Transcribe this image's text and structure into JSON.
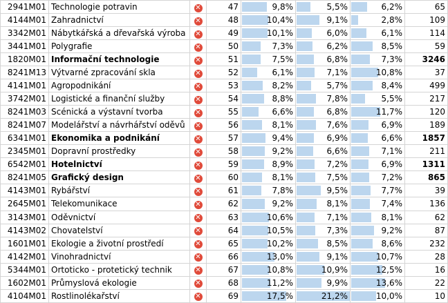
{
  "table": {
    "rows": [
      {
        "code": "2941M01",
        "name": "Technologie potravin",
        "bold": false,
        "rank": "47",
        "p1": "9,8%",
        "p2": "5,5%",
        "p3": "6,2%",
        "count": "65"
      },
      {
        "code": "4144M01",
        "name": "Zahradnictví",
        "bold": false,
        "rank": "48",
        "p1": "10,4%",
        "p2": "9,1%",
        "p3": "2,8%",
        "count": "109"
      },
      {
        "code": "3342M01",
        "name": "Nábytkářská a dřevařská výroba",
        "bold": false,
        "rank": "49",
        "p1": "10,1%",
        "p2": "6,0%",
        "p3": "6,1%",
        "count": "114"
      },
      {
        "code": "3441M01",
        "name": "Polygrafie",
        "bold": false,
        "rank": "50",
        "p1": "7,3%",
        "p2": "6,2%",
        "p3": "8,5%",
        "count": "59"
      },
      {
        "code": "1820M01",
        "name": "Informační technologie",
        "bold": true,
        "rank": "51",
        "p1": "7,5%",
        "p2": "6,8%",
        "p3": "7,3%",
        "count": "3246"
      },
      {
        "code": "8241M13",
        "name": "Výtvarné zpracování skla",
        "bold": false,
        "rank": "52",
        "p1": "6,1%",
        "p2": "7,1%",
        "p3": "10,8%",
        "count": "37"
      },
      {
        "code": "4141M01",
        "name": "Agropodnikání",
        "bold": false,
        "rank": "53",
        "p1": "8,2%",
        "p2": "5,7%",
        "p3": "8,4%",
        "count": "499"
      },
      {
        "code": "3742M01",
        "name": "Logistické a finanční služby",
        "bold": false,
        "rank": "54",
        "p1": "8,8%",
        "p2": "7,8%",
        "p3": "5,5%",
        "count": "217"
      },
      {
        "code": "8241M03",
        "name": "Scénická a výstavní tvorba",
        "bold": false,
        "rank": "55",
        "p1": "6,6%",
        "p2": "6,8%",
        "p3": "11,7%",
        "count": "120"
      },
      {
        "code": "8241M07",
        "name": "Modelářství a návrhářství oděvů",
        "bold": false,
        "rank": "56",
        "p1": "8,1%",
        "p2": "7,6%",
        "p3": "6,9%",
        "count": "189"
      },
      {
        "code": "6341M01",
        "name": "Ekonomika a podnikání",
        "bold": true,
        "rank": "57",
        "p1": "9,4%",
        "p2": "6,9%",
        "p3": "6,6%",
        "count": "1857"
      },
      {
        "code": "2345M01",
        "name": "Dopravní prostředky",
        "bold": false,
        "rank": "58",
        "p1": "9,2%",
        "p2": "6,6%",
        "p3": "7,1%",
        "count": "211"
      },
      {
        "code": "6542M01",
        "name": "Hotelnictví",
        "bold": true,
        "rank": "59",
        "p1": "8,9%",
        "p2": "7,2%",
        "p3": "6,9%",
        "count": "1311"
      },
      {
        "code": "8241M05",
        "name": "Grafický design",
        "bold": true,
        "rank": "60",
        "p1": "8,1%",
        "p2": "7,5%",
        "p3": "7,2%",
        "count": "865"
      },
      {
        "code": "4143M01",
        "name": "Rybářství",
        "bold": false,
        "rank": "61",
        "p1": "7,8%",
        "p2": "9,5%",
        "p3": "7,7%",
        "count": "39"
      },
      {
        "code": "2645M01",
        "name": "Telekomunikace",
        "bold": false,
        "rank": "62",
        "p1": "9,2%",
        "p2": "8,1%",
        "p3": "7,4%",
        "count": "136"
      },
      {
        "code": "3143M01",
        "name": "Oděvnictví",
        "bold": false,
        "rank": "63",
        "p1": "10,6%",
        "p2": "7,1%",
        "p3": "8,1%",
        "count": "62"
      },
      {
        "code": "4143M02",
        "name": "Chovatelství",
        "bold": false,
        "rank": "64",
        "p1": "10,5%",
        "p2": "7,3%",
        "p3": "9,2%",
        "count": "87"
      },
      {
        "code": "1601M01",
        "name": "Ekologie a životní prostředí",
        "bold": false,
        "rank": "65",
        "p1": "10,2%",
        "p2": "8,5%",
        "p3": "8,6%",
        "count": "232"
      },
      {
        "code": "4142M01",
        "name": "Vinohradnictví",
        "bold": false,
        "rank": "66",
        "p1": "13,0%",
        "p2": "9,1%",
        "p3": "10,7%",
        "count": "28"
      },
      {
        "code": "5344M01",
        "name": "Ortoticko - protetický technik",
        "bold": false,
        "rank": "67",
        "p1": "10,8%",
        "p2": "10,9%",
        "p3": "12,5%",
        "count": "16"
      },
      {
        "code": "1602M01",
        "name": "Průmyslová ekologie",
        "bold": false,
        "rank": "68",
        "p1": "11,2%",
        "p2": "9,9%",
        "p3": "13,6%",
        "count": "22"
      },
      {
        "code": "4104M01",
        "name": "Rostlinolékařství",
        "bold": false,
        "rank": "69",
        "p1": "17,5%",
        "p2": "21,2%",
        "p3": "10,0%",
        "count": "10"
      }
    ],
    "bar_max": 21.2,
    "bar_color": "#bcd6ee",
    "status_icon": "error-x-icon",
    "status_color": "#e04a3a"
  }
}
